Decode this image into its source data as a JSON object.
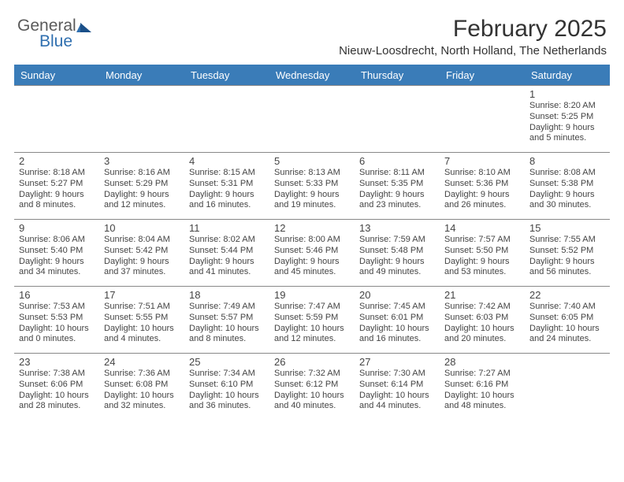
{
  "logo": {
    "general": "General",
    "blue": "Blue"
  },
  "title": {
    "month": "February 2025",
    "location": "Nieuw-Loosdrecht, North Holland, The Netherlands"
  },
  "colors": {
    "header_bg": "#3a7cb8",
    "header_text": "#ffffff",
    "border": "#888888",
    "text": "#444444"
  },
  "day_headers": [
    "Sunday",
    "Monday",
    "Tuesday",
    "Wednesday",
    "Thursday",
    "Friday",
    "Saturday"
  ],
  "weeks": [
    [
      null,
      null,
      null,
      null,
      null,
      null,
      {
        "num": "1",
        "sunrise": "Sunrise: 8:20 AM",
        "sunset": "Sunset: 5:25 PM",
        "day1": "Daylight: 9 hours",
        "day2": "and 5 minutes."
      }
    ],
    [
      {
        "num": "2",
        "sunrise": "Sunrise: 8:18 AM",
        "sunset": "Sunset: 5:27 PM",
        "day1": "Daylight: 9 hours",
        "day2": "and 8 minutes."
      },
      {
        "num": "3",
        "sunrise": "Sunrise: 8:16 AM",
        "sunset": "Sunset: 5:29 PM",
        "day1": "Daylight: 9 hours",
        "day2": "and 12 minutes."
      },
      {
        "num": "4",
        "sunrise": "Sunrise: 8:15 AM",
        "sunset": "Sunset: 5:31 PM",
        "day1": "Daylight: 9 hours",
        "day2": "and 16 minutes."
      },
      {
        "num": "5",
        "sunrise": "Sunrise: 8:13 AM",
        "sunset": "Sunset: 5:33 PM",
        "day1": "Daylight: 9 hours",
        "day2": "and 19 minutes."
      },
      {
        "num": "6",
        "sunrise": "Sunrise: 8:11 AM",
        "sunset": "Sunset: 5:35 PM",
        "day1": "Daylight: 9 hours",
        "day2": "and 23 minutes."
      },
      {
        "num": "7",
        "sunrise": "Sunrise: 8:10 AM",
        "sunset": "Sunset: 5:36 PM",
        "day1": "Daylight: 9 hours",
        "day2": "and 26 minutes."
      },
      {
        "num": "8",
        "sunrise": "Sunrise: 8:08 AM",
        "sunset": "Sunset: 5:38 PM",
        "day1": "Daylight: 9 hours",
        "day2": "and 30 minutes."
      }
    ],
    [
      {
        "num": "9",
        "sunrise": "Sunrise: 8:06 AM",
        "sunset": "Sunset: 5:40 PM",
        "day1": "Daylight: 9 hours",
        "day2": "and 34 minutes."
      },
      {
        "num": "10",
        "sunrise": "Sunrise: 8:04 AM",
        "sunset": "Sunset: 5:42 PM",
        "day1": "Daylight: 9 hours",
        "day2": "and 37 minutes."
      },
      {
        "num": "11",
        "sunrise": "Sunrise: 8:02 AM",
        "sunset": "Sunset: 5:44 PM",
        "day1": "Daylight: 9 hours",
        "day2": "and 41 minutes."
      },
      {
        "num": "12",
        "sunrise": "Sunrise: 8:00 AM",
        "sunset": "Sunset: 5:46 PM",
        "day1": "Daylight: 9 hours",
        "day2": "and 45 minutes."
      },
      {
        "num": "13",
        "sunrise": "Sunrise: 7:59 AM",
        "sunset": "Sunset: 5:48 PM",
        "day1": "Daylight: 9 hours",
        "day2": "and 49 minutes."
      },
      {
        "num": "14",
        "sunrise": "Sunrise: 7:57 AM",
        "sunset": "Sunset: 5:50 PM",
        "day1": "Daylight: 9 hours",
        "day2": "and 53 minutes."
      },
      {
        "num": "15",
        "sunrise": "Sunrise: 7:55 AM",
        "sunset": "Sunset: 5:52 PM",
        "day1": "Daylight: 9 hours",
        "day2": "and 56 minutes."
      }
    ],
    [
      {
        "num": "16",
        "sunrise": "Sunrise: 7:53 AM",
        "sunset": "Sunset: 5:53 PM",
        "day1": "Daylight: 10 hours",
        "day2": "and 0 minutes."
      },
      {
        "num": "17",
        "sunrise": "Sunrise: 7:51 AM",
        "sunset": "Sunset: 5:55 PM",
        "day1": "Daylight: 10 hours",
        "day2": "and 4 minutes."
      },
      {
        "num": "18",
        "sunrise": "Sunrise: 7:49 AM",
        "sunset": "Sunset: 5:57 PM",
        "day1": "Daylight: 10 hours",
        "day2": "and 8 minutes."
      },
      {
        "num": "19",
        "sunrise": "Sunrise: 7:47 AM",
        "sunset": "Sunset: 5:59 PM",
        "day1": "Daylight: 10 hours",
        "day2": "and 12 minutes."
      },
      {
        "num": "20",
        "sunrise": "Sunrise: 7:45 AM",
        "sunset": "Sunset: 6:01 PM",
        "day1": "Daylight: 10 hours",
        "day2": "and 16 minutes."
      },
      {
        "num": "21",
        "sunrise": "Sunrise: 7:42 AM",
        "sunset": "Sunset: 6:03 PM",
        "day1": "Daylight: 10 hours",
        "day2": "and 20 minutes."
      },
      {
        "num": "22",
        "sunrise": "Sunrise: 7:40 AM",
        "sunset": "Sunset: 6:05 PM",
        "day1": "Daylight: 10 hours",
        "day2": "and 24 minutes."
      }
    ],
    [
      {
        "num": "23",
        "sunrise": "Sunrise: 7:38 AM",
        "sunset": "Sunset: 6:06 PM",
        "day1": "Daylight: 10 hours",
        "day2": "and 28 minutes."
      },
      {
        "num": "24",
        "sunrise": "Sunrise: 7:36 AM",
        "sunset": "Sunset: 6:08 PM",
        "day1": "Daylight: 10 hours",
        "day2": "and 32 minutes."
      },
      {
        "num": "25",
        "sunrise": "Sunrise: 7:34 AM",
        "sunset": "Sunset: 6:10 PM",
        "day1": "Daylight: 10 hours",
        "day2": "and 36 minutes."
      },
      {
        "num": "26",
        "sunrise": "Sunrise: 7:32 AM",
        "sunset": "Sunset: 6:12 PM",
        "day1": "Daylight: 10 hours",
        "day2": "and 40 minutes."
      },
      {
        "num": "27",
        "sunrise": "Sunrise: 7:30 AM",
        "sunset": "Sunset: 6:14 PM",
        "day1": "Daylight: 10 hours",
        "day2": "and 44 minutes."
      },
      {
        "num": "28",
        "sunrise": "Sunrise: 7:27 AM",
        "sunset": "Sunset: 6:16 PM",
        "day1": "Daylight: 10 hours",
        "day2": "and 48 minutes."
      },
      null
    ]
  ]
}
